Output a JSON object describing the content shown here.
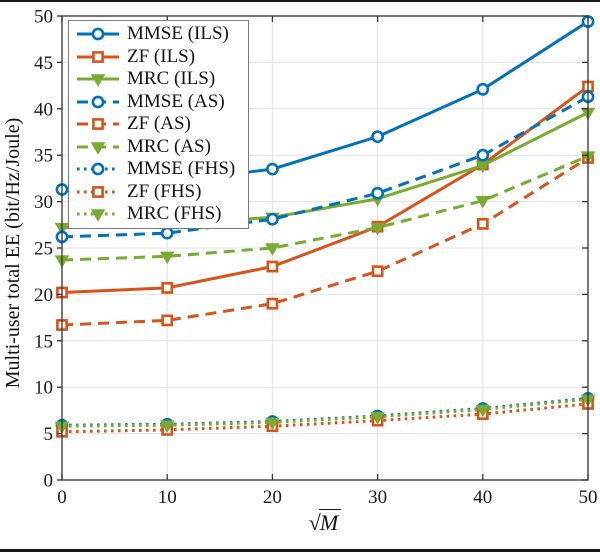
{
  "figure": {
    "ylabel": "Multi-user total EE (bit/Hz/Joule)",
    "xlabel": {
      "radical": "√",
      "radicand": "M"
    }
  },
  "colors": {
    "blue": "#0072BD",
    "orange": "#D95319",
    "green": "#77AC30",
    "axis": "#333333",
    "grid": "#e2e2e2",
    "text": "#1a1a1a"
  },
  "chart_data": {
    "type": "line",
    "title": "",
    "xlabel": "sqrt(M)",
    "ylabel": "Multi-user total EE (bit/Hz/Joule)",
    "x": [
      0,
      10,
      20,
      30,
      40,
      50
    ],
    "x_ticks": [
      0,
      10,
      20,
      30,
      40,
      50
    ],
    "y_ticks": [
      0,
      5,
      10,
      15,
      20,
      25,
      30,
      35,
      40,
      45,
      50
    ],
    "xlim": [
      0,
      50
    ],
    "ylim": [
      0,
      50
    ],
    "grid": true,
    "legend_position": "top-left",
    "series": [
      {
        "name": "MMSE (ILS)",
        "color": "#0072BD",
        "line": "solid",
        "marker": "circle",
        "values": [
          31.3,
          32.1,
          33.5,
          37.0,
          42.1,
          49.4
        ]
      },
      {
        "name": "ZF (ILS)",
        "color": "#D95319",
        "line": "solid",
        "marker": "square",
        "values": [
          20.2,
          20.7,
          23.0,
          27.3,
          34.0,
          42.4
        ]
      },
      {
        "name": "MRC (ILS)",
        "color": "#77AC30",
        "line": "solid",
        "marker": "triangle-down",
        "values": [
          27.2,
          27.6,
          28.3,
          30.3,
          33.9,
          39.6
        ]
      },
      {
        "name": "MMSE (AS)",
        "color": "#0072BD",
        "line": "dashed",
        "marker": "circle",
        "values": [
          26.2,
          26.6,
          28.1,
          30.9,
          35.0,
          41.3
        ]
      },
      {
        "name": "ZF (AS)",
        "color": "#D95319",
        "line": "dashed",
        "marker": "square",
        "values": [
          16.7,
          17.2,
          19.0,
          22.5,
          27.6,
          34.7
        ]
      },
      {
        "name": "MRC (AS)",
        "color": "#77AC30",
        "line": "dashed",
        "marker": "triangle-down",
        "values": [
          23.7,
          24.1,
          25.0,
          27.2,
          30.1,
          34.9
        ]
      },
      {
        "name": "MMSE (FHS)",
        "color": "#0072BD",
        "line": "dotted",
        "marker": "circle",
        "values": [
          5.9,
          6.0,
          6.3,
          6.9,
          7.7,
          8.8
        ]
      },
      {
        "name": "ZF (FHS)",
        "color": "#D95319",
        "line": "dotted",
        "marker": "square",
        "values": [
          5.2,
          5.4,
          5.8,
          6.4,
          7.1,
          8.2
        ]
      },
      {
        "name": "MRC (FHS)",
        "color": "#77AC30",
        "line": "dotted",
        "marker": "triangle-down",
        "values": [
          5.8,
          5.9,
          6.2,
          6.8,
          7.6,
          8.7
        ]
      }
    ]
  }
}
